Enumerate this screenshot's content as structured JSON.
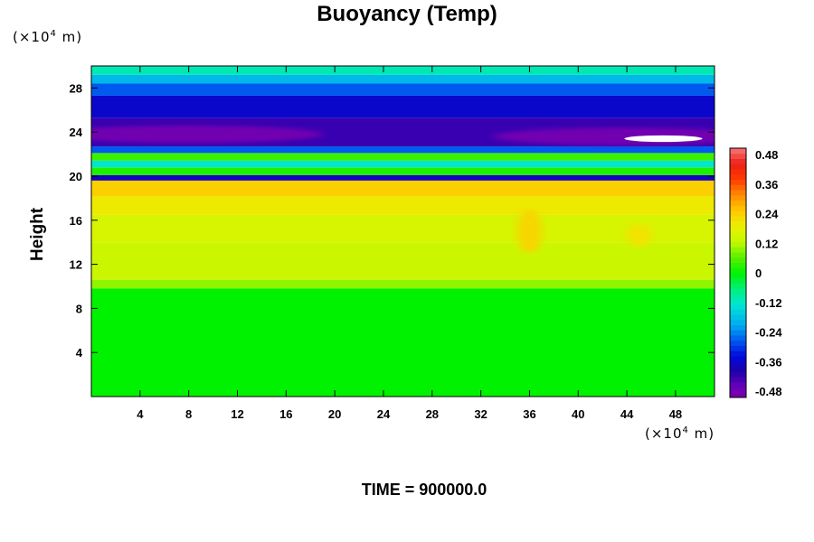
{
  "chart_data": {
    "type": "heatmap",
    "title": "Buoyancy (Temp)",
    "ylabel": "Height",
    "y_unit_label": "(×10",
    "y_unit_exp": "4",
    "y_unit_suffix": " m)",
    "x_unit_label": "(×10",
    "x_unit_exp": "4",
    "x_unit_suffix": " m)",
    "xlim": [
      0,
      51.2
    ],
    "ylim": [
      0,
      30
    ],
    "x_ticks": [
      4,
      8,
      12,
      16,
      20,
      24,
      28,
      32,
      36,
      40,
      44,
      48
    ],
    "y_ticks": [
      4,
      8,
      12,
      16,
      20,
      24,
      28
    ],
    "x_tick_labels": [
      "4",
      "8",
      "12",
      "16",
      "20",
      "24",
      "28",
      "32",
      "36",
      "40",
      "44",
      "48"
    ],
    "y_tick_labels": [
      "4",
      "8",
      "12",
      "16",
      "20",
      "24",
      "28"
    ],
    "colorbar": {
      "min": -0.48,
      "max": 0.48,
      "tick_labels": [
        "0.48",
        "0.36",
        "0.24",
        "0.12",
        "0",
        "-0.12",
        "-0.24",
        "-0.36",
        "-0.48"
      ],
      "tick_values": [
        0.48,
        0.36,
        0.24,
        0.12,
        0,
        -0.12,
        -0.24,
        -0.36,
        -0.48
      ]
    },
    "vertical_profile": [
      {
        "y_from": 0,
        "y_to": 9.8,
        "value": 0.0
      },
      {
        "y_from": 9.8,
        "y_to": 10.6,
        "value": 0.09
      },
      {
        "y_from": 10.6,
        "y_to": 14,
        "value": 0.13
      },
      {
        "y_from": 14,
        "y_to": 16.5,
        "value": 0.15
      },
      {
        "y_from": 16.5,
        "y_to": 18.2,
        "value": 0.19
      },
      {
        "y_from": 18.2,
        "y_to": 19.6,
        "value": 0.23
      },
      {
        "y_from": 19.6,
        "y_to": 20.1,
        "value": -0.36
      },
      {
        "y_from": 20.1,
        "y_to": 20.8,
        "value": 0.02
      },
      {
        "y_from": 20.8,
        "y_to": 21.4,
        "value": -0.12
      },
      {
        "y_from": 21.4,
        "y_to": 22.1,
        "value": 0.04
      },
      {
        "y_from": 22.1,
        "y_to": 22.7,
        "value": -0.26
      },
      {
        "y_from": 22.7,
        "y_to": 25.3,
        "value": -0.4
      },
      {
        "y_from": 25.3,
        "y_to": 27.3,
        "value": -0.34
      },
      {
        "y_from": 27.3,
        "y_to": 28.4,
        "value": -0.26
      },
      {
        "y_from": 28.4,
        "y_to": 29.2,
        "value": -0.18
      },
      {
        "y_from": 29.2,
        "y_to": 30,
        "value": -0.1
      }
    ],
    "features": [
      {
        "x": 8,
        "y": 23.8,
        "rx": 11,
        "ry": 0.8,
        "value": -0.46
      },
      {
        "x": 44,
        "y": 23.6,
        "rx": 11,
        "ry": 0.8,
        "value": -0.46
      },
      {
        "x": 47,
        "y": 23.4,
        "rx": 3.2,
        "ry": 0.3,
        "value": -0.6
      },
      {
        "x": 36,
        "y": 15,
        "rx": 1,
        "ry": 2,
        "value": 0.22
      },
      {
        "x": 45,
        "y": 14.6,
        "rx": 1,
        "ry": 1,
        "value": 0.2
      }
    ],
    "time_label": "TIME = 900000.0"
  }
}
